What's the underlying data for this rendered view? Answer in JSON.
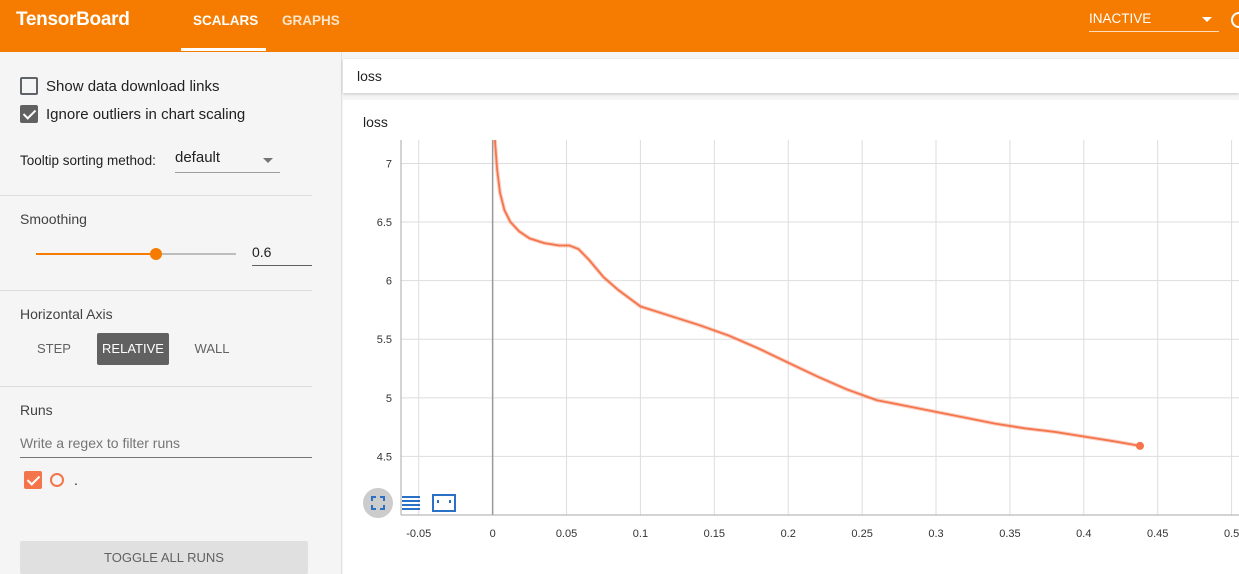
{
  "header": {
    "brand": "TensorBoard",
    "tabs": [
      {
        "label": "SCALARS",
        "active": true
      },
      {
        "label": "GRAPHS",
        "active": false
      }
    ],
    "run_select": "INACTIVE",
    "accent_color": "#f57c00"
  },
  "sidebar": {
    "show_download_links": {
      "label": "Show data download links",
      "checked": false
    },
    "ignore_outliers": {
      "label": "Ignore outliers in chart scaling",
      "checked": true
    },
    "tooltip_sorting": {
      "label": "Tooltip sorting method:",
      "value": "default"
    },
    "smoothing": {
      "title": "Smoothing",
      "value": "0.6",
      "fraction": 0.6
    },
    "horizontal_axis": {
      "title": "Horizontal Axis",
      "buttons": [
        {
          "label": "STEP",
          "active": false
        },
        {
          "label": "RELATIVE",
          "active": true
        },
        {
          "label": "WALL",
          "active": false
        }
      ]
    },
    "runs": {
      "title": "Runs",
      "filter_placeholder": "Write a regex to filter runs",
      "items": [
        {
          "name": ".",
          "checked": true,
          "color": "#f4754c"
        }
      ],
      "toggle_all_label": "TOGGLE ALL RUNS"
    }
  },
  "main": {
    "tag_header": "loss",
    "chart_title": "loss",
    "controls": [
      "fullscreen-icon",
      "log-scale-icon",
      "fit-domain-icon"
    ]
  },
  "chart_data": {
    "type": "line",
    "title": "loss",
    "xlabel": "",
    "ylabel": "",
    "x_ticks": [
      "-0.05",
      "0",
      "0.05",
      "0.1",
      "0.15",
      "0.2",
      "0.25",
      "0.3",
      "0.35",
      "0.4",
      "0.45",
      "0.5"
    ],
    "y_ticks": [
      "4.5",
      "5",
      "5.5",
      "6",
      "6.5",
      "7"
    ],
    "xlim": [
      -0.062,
      0.505
    ],
    "ylim": [
      4.0,
      7.2
    ],
    "grid": true,
    "series": [
      {
        "color": "#f4754c",
        "x": [
          0.0015,
          0.003,
          0.005,
          0.008,
          0.012,
          0.018,
          0.025,
          0.035,
          0.045,
          0.052,
          0.058,
          0.065,
          0.075,
          0.085,
          0.1,
          0.12,
          0.14,
          0.16,
          0.18,
          0.2,
          0.22,
          0.24,
          0.26,
          0.28,
          0.3,
          0.32,
          0.34,
          0.36,
          0.38,
          0.4,
          0.42,
          0.438
        ],
        "y": [
          7.2,
          6.95,
          6.75,
          6.6,
          6.5,
          6.42,
          6.36,
          6.32,
          6.3,
          6.3,
          6.27,
          6.18,
          6.03,
          5.92,
          5.78,
          5.7,
          5.62,
          5.53,
          5.42,
          5.3,
          5.18,
          5.07,
          4.98,
          4.93,
          4.88,
          4.83,
          4.78,
          4.74,
          4.71,
          4.67,
          4.63,
          4.59
        ]
      }
    ]
  }
}
